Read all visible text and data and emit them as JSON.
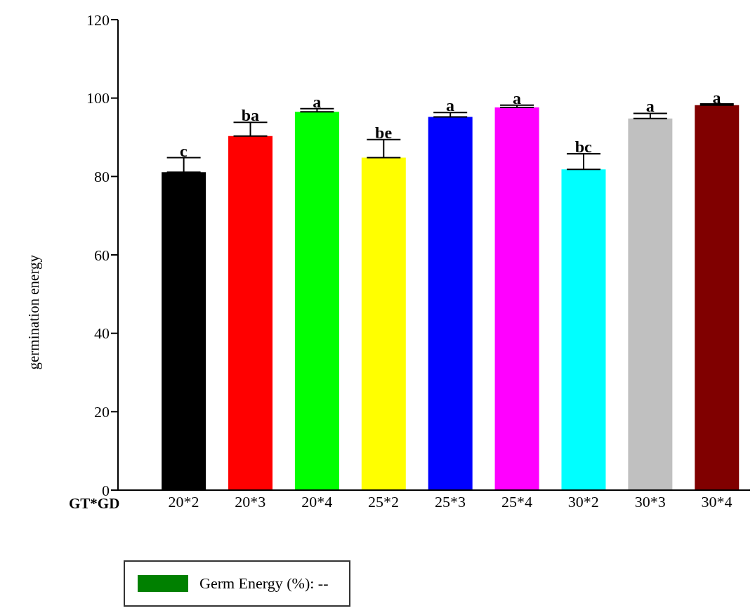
{
  "chart_data": {
    "type": "bar",
    "ylabel": "germination energy",
    "xlabel": "GT*GD",
    "categories": [
      "20*2",
      "20*3",
      "20*4",
      "25*2",
      "25*3",
      "25*4",
      "30*2",
      "30*3",
      "30*4"
    ],
    "series": [
      {
        "name": "Germ Energy (%): --",
        "color": "#008000",
        "colors": [
          "#000000",
          "#ff0000",
          "#00ff00",
          "#ffff00",
          "#0000ff",
          "#ff00ff",
          "#00ffff",
          "#c0c0c0",
          "#800000"
        ],
        "values": [
          81.1,
          90.3,
          96.5,
          84.8,
          95.2,
          97.6,
          81.8,
          94.8,
          98.2
        ],
        "errors": [
          3.7,
          3.5,
          0.8,
          4.6,
          1.1,
          0.6,
          4.0,
          1.3,
          0.3
        ]
      }
    ],
    "ylim": [
      0,
      120
    ],
    "yticks": [
      0,
      20,
      40,
      60,
      80,
      100,
      120
    ],
    "grid": false,
    "legend": "bottom left",
    "annotations": [
      {
        "text": "c",
        "x": "20*2",
        "y": 84.8
      },
      {
        "text": "ba",
        "x": "20*3",
        "y": 93.8
      },
      {
        "text": "a",
        "x": "20*4",
        "y": 97.3
      },
      {
        "text": "be",
        "x": "25*2",
        "y": 89.4
      },
      {
        "text": "a",
        "x": "25*3",
        "y": 96.3
      },
      {
        "text": "a",
        "x": "25*4",
        "y": 98.2
      },
      {
        "text": "bc",
        "x": "30*2",
        "y": 85.8
      },
      {
        "text": "a",
        "x": "30*3",
        "y": 96.1
      },
      {
        "text": "a",
        "x": "30*4",
        "y": 98.4
      }
    ]
  }
}
